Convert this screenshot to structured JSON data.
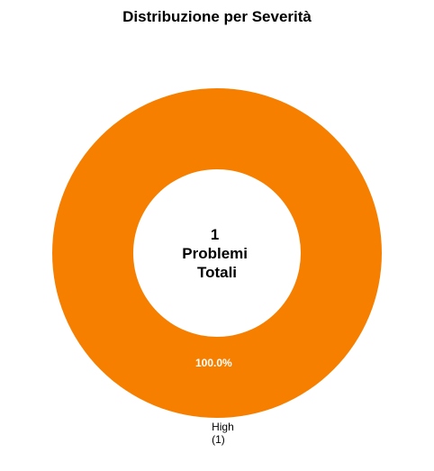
{
  "chart_data": {
    "type": "pie",
    "title": "Distribuzione per Severità",
    "center_label": [
      "1",
      "Problemi",
      "Totali"
    ],
    "slices": [
      {
        "label": "High",
        "count_label": "(1)",
        "value": 1,
        "percent_label": "100.0%",
        "color": "#f77f00"
      }
    ],
    "donut": true,
    "legend": "none",
    "grid": false
  }
}
